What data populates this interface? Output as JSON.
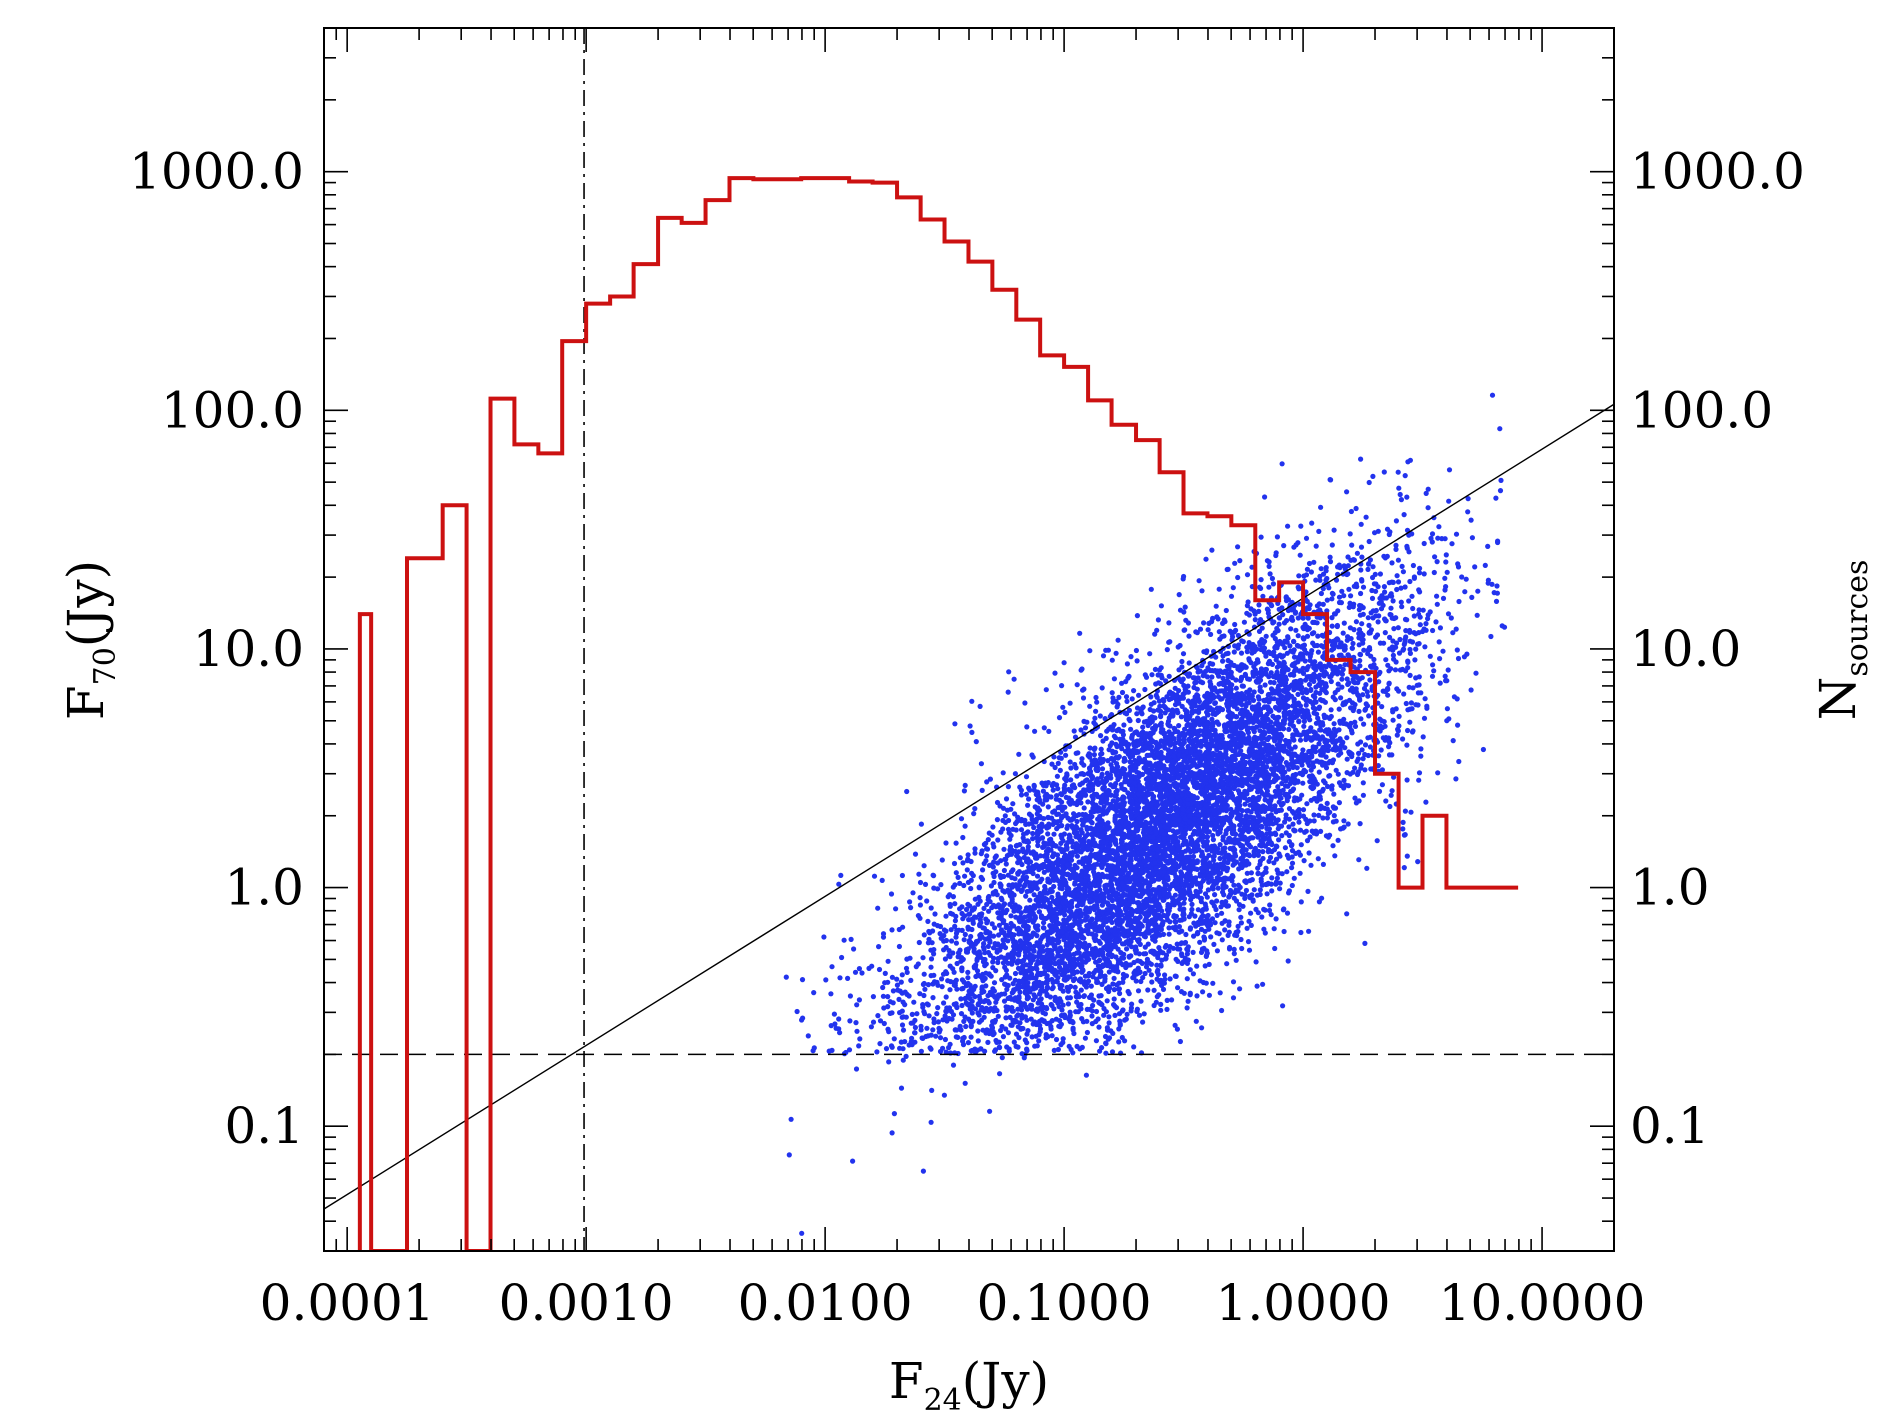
{
  "chart_data": {
    "type": "scatter",
    "x_scale": "log",
    "y_scale": "log",
    "xlim": [
      8e-05,
      20.0
    ],
    "ylim": [
      0.03,
      4000
    ],
    "x_ticks": [
      {
        "value": 0.0001,
        "label": "0.0001"
      },
      {
        "value": 0.001,
        "label": "0.0010"
      },
      {
        "value": 0.01,
        "label": "0.0100"
      },
      {
        "value": 0.1,
        "label": "0.1000"
      },
      {
        "value": 1,
        "label": "1.0000"
      },
      {
        "value": 10,
        "label": "10.0000"
      }
    ],
    "y_ticks": [
      {
        "value": 0.1,
        "label": "0.1"
      },
      {
        "value": 1,
        "label": "1.0"
      },
      {
        "value": 10,
        "label": "10.0"
      },
      {
        "value": 100,
        "label": "100.0"
      },
      {
        "value": 1000,
        "label": "1000.0"
      }
    ],
    "y2_ticks": [
      {
        "value": 0.1,
        "label": "0.1"
      },
      {
        "value": 1,
        "label": "1.0"
      },
      {
        "value": 10,
        "label": "10.0"
      },
      {
        "value": 100,
        "label": "100.0"
      },
      {
        "value": 1000,
        "label": "1000.0"
      }
    ],
    "xlabel": {
      "main": "F",
      "sub": "24",
      "tail": "(Jy)"
    },
    "ylabel": {
      "main": "F",
      "sub": "70",
      "tail": "(Jy)"
    },
    "y2label": {
      "main": "N",
      "sub": "sources",
      "tail": ""
    },
    "grid": false,
    "colors": {
      "scatter": "#2233ee",
      "histogram": "#cc1111",
      "lines": "#000000"
    },
    "scatter_summary": {
      "n_points": 9000,
      "log_x_center": -0.6,
      "log_y_center": 0.25,
      "log_y_vs_log_x_slope": 0.75,
      "log_y_scatter": 0.33
    },
    "reference_lines": [
      {
        "type": "horizontal",
        "y": 0.2,
        "style": "dashed"
      },
      {
        "type": "vertical",
        "x": 0.00098,
        "style": "dash-dot"
      },
      {
        "type": "diagonal",
        "x_range": [
          8e-05,
          20.0
        ],
        "y_range": [
          0.045,
          106
        ],
        "style": "solid"
      }
    ],
    "histogram": {
      "name": "N sources",
      "bin_edges": [
        0.000126,
        0.000178,
        0.000251,
        0.000316,
        0.000398,
        0.000501,
        0.000631,
        0.000794,
        0.001,
        0.00126,
        0.00158,
        0.002,
        0.00251,
        0.00316,
        0.00398,
        0.00501,
        0.00631,
        0.00794,
        0.01,
        0.0126,
        0.0158,
        0.02,
        0.0251,
        0.0316,
        0.0398,
        0.0501,
        0.0631,
        0.0794,
        0.1,
        0.126,
        0.158,
        0.2,
        0.251,
        0.316,
        0.398,
        0.501,
        0.631,
        0.794,
        1.0,
        1.26,
        1.58,
        2.0,
        2.51,
        3.16,
        3.98,
        5.01,
        6.31,
        7.94
      ],
      "counts": [
        0.03,
        24,
        40,
        0.03,
        112,
        72,
        66,
        195,
        280,
        300,
        410,
        640,
        610,
        760,
        940,
        930,
        930,
        940,
        940,
        910,
        900,
        780,
        630,
        510,
        420,
        320,
        240,
        170,
        152,
        110,
        87,
        75,
        55,
        37,
        36,
        33,
        16,
        19,
        14,
        9,
        8,
        3,
        1,
        2,
        1,
        1,
        1
      ],
      "first_bar": {
        "from": 0.000113,
        "to": 0.000126,
        "count": 14
      }
    }
  }
}
